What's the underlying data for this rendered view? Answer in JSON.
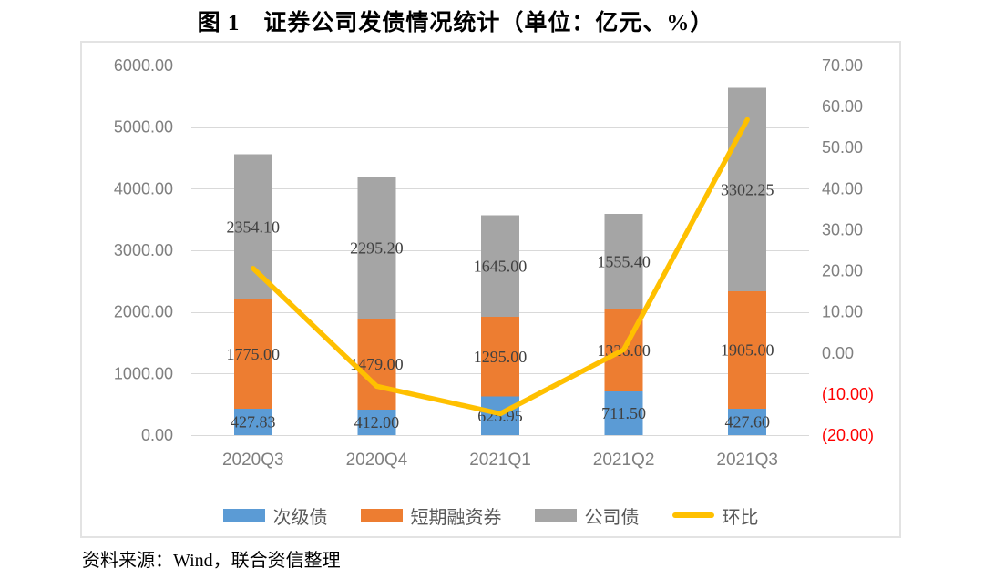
{
  "title": "图 1　证券公司发债情况统计（单位：亿元、%）",
  "source_note": "资料来源：Wind，联合资信整理",
  "chart_data": {
    "type": "combo: stacked bar (left axis) + line (right axis)",
    "title": "图 1　证券公司发债情况统计（单位：亿元、%）",
    "unit": "亿元、%",
    "categories": [
      "2020Q3",
      "2020Q4",
      "2021Q1",
      "2021Q2",
      "2021Q3"
    ],
    "series": [
      {
        "name": "次级债",
        "chart": "bar",
        "stack": true,
        "axis": "left",
        "color": "#5b9bd5",
        "values": [
          427.83,
          412.0,
          625.95,
          711.5,
          427.6
        ]
      },
      {
        "name": "短期融资券",
        "chart": "bar",
        "stack": true,
        "axis": "left",
        "color": "#ed7d31",
        "values": [
          1775.0,
          1479.0,
          1295.0,
          1326.0,
          1905.0
        ]
      },
      {
        "name": "公司债",
        "chart": "bar",
        "stack": true,
        "axis": "left",
        "color": "#a5a5a5",
        "values": [
          2354.1,
          2295.2,
          1645.0,
          1555.4,
          3302.25
        ]
      },
      {
        "name": "环比",
        "chart": "line",
        "axis": "right",
        "color": "#ffc000",
        "values": [
          20.6,
          -8.1,
          -14.8,
          0.8,
          56.8
        ]
      }
    ],
    "left_axis": {
      "min": 0,
      "max": 6000,
      "step": 1000,
      "tick_format": "0.00"
    },
    "right_axis": {
      "min": -20,
      "max": 70,
      "step": 10,
      "negative_style": "red parentheses"
    },
    "legend_position": "bottom",
    "grid": true,
    "colors": {
      "grid": "#d9d9d9",
      "tick_text": "#7f7f7f",
      "negative_tick_text": "#ff0000",
      "data_label_text": "#404040",
      "frame_border": "#e3e3e3"
    }
  }
}
